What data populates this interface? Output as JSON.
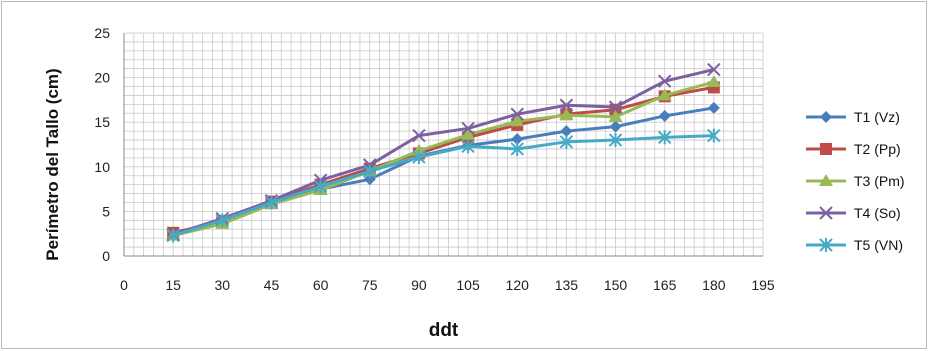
{
  "chart_data": {
    "type": "line",
    "title": "",
    "xlabel": "ddt",
    "ylabel": "Perímetro del Tallo (cm)",
    "xlim": [
      0,
      195
    ],
    "ylim": [
      0,
      25
    ],
    "x_ticks": [
      "0",
      "15",
      "30",
      "45",
      "60",
      "75",
      "90",
      "105",
      "120",
      "135",
      "150",
      "165",
      "180",
      "195"
    ],
    "y_ticks": [
      "0",
      "5",
      "10",
      "15",
      "20",
      "25"
    ],
    "grid": true,
    "legend": "right",
    "x": [
      15,
      30,
      45,
      60,
      75,
      90,
      105,
      120,
      135,
      150,
      165,
      180
    ],
    "series": [
      {
        "name": "T1 (Vz)",
        "color": "#4a7ebb",
        "marker": "diamond",
        "values": [
          2.4,
          3.9,
          6.0,
          7.5,
          8.6,
          11.2,
          12.4,
          13.1,
          14.0,
          14.5,
          15.7,
          16.6
        ]
      },
      {
        "name": "T2 (Pp)",
        "color": "#be4b48",
        "marker": "square",
        "values": [
          2.6,
          3.9,
          6.1,
          8.0,
          9.8,
          11.5,
          13.3,
          14.7,
          15.9,
          16.4,
          17.9,
          18.9
        ]
      },
      {
        "name": "T3 (Pm)",
        "color": "#98b954",
        "marker": "triangle",
        "values": [
          2.3,
          3.6,
          5.8,
          7.4,
          9.5,
          11.8,
          13.6,
          15.1,
          15.8,
          15.6,
          18.0,
          19.5
        ]
      },
      {
        "name": "T4 (So)",
        "color": "#7d60a0",
        "marker": "x",
        "values": [
          2.4,
          4.2,
          6.2,
          8.5,
          10.2,
          13.5,
          14.3,
          15.9,
          16.9,
          16.7,
          19.6,
          20.9
        ]
      },
      {
        "name": "T5 (VN)",
        "color": "#46aac5",
        "marker": "star",
        "values": [
          2.3,
          4.0,
          6.0,
          7.8,
          9.5,
          11.1,
          12.3,
          12.0,
          12.8,
          13.0,
          13.3,
          13.5
        ]
      }
    ]
  }
}
